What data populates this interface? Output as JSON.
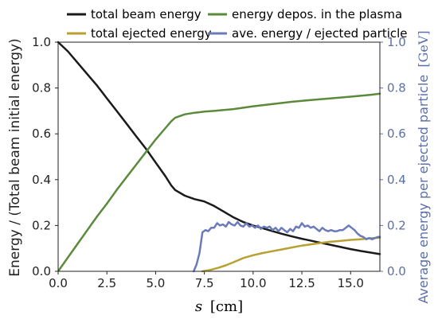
{
  "chart_data": {
    "type": "line",
    "xlabel_var": "s",
    "xlabel_unit": "[cm]",
    "ylabel": "Energy / (Total beam initial energy)",
    "ylabel_right_text": "Average energy per ejected particle",
    "ylabel_right_unit": "[GeV]",
    "xlim": [
      0,
      16.5
    ],
    "ylim": [
      0,
      1.0
    ],
    "ylim_right": [
      0,
      1.0
    ],
    "x_ticks": [
      "0.0",
      "2.5",
      "5.0",
      "7.5",
      "10.0",
      "12.5",
      "15.0"
    ],
    "y_ticks": [
      "0.0",
      "0.2",
      "0.4",
      "0.6",
      "0.8",
      "1.0"
    ],
    "y_ticks_right": [
      "0.0",
      "0.2",
      "0.4",
      "0.6",
      "0.8",
      "1.0"
    ],
    "grid": false,
    "legend_position": "top, above plot",
    "colors": {
      "beam": "#1a1a1a",
      "deposited": "#5a8a3a",
      "ejected": "#b8a032",
      "average": "#6b7ab8",
      "right_axis": "#5b6fa8"
    },
    "series": [
      {
        "key": "beam",
        "name": "total beam energy",
        "axis": "left",
        "x": [
          0,
          0.5,
          1,
          1.5,
          2,
          2.5,
          3,
          3.5,
          4,
          4.5,
          5,
          5.5,
          5.8,
          6,
          6.5,
          7,
          7.5,
          8,
          8.5,
          9,
          9.5,
          10,
          10.5,
          11,
          11.5,
          12,
          12.5,
          13,
          13.5,
          14,
          14.5,
          15,
          15.5,
          16,
          16.5
        ],
        "y": [
          1.0,
          0.96,
          0.91,
          0.86,
          0.81,
          0.755,
          0.7,
          0.645,
          0.59,
          0.535,
          0.475,
          0.415,
          0.375,
          0.355,
          0.33,
          0.315,
          0.305,
          0.285,
          0.26,
          0.235,
          0.215,
          0.2,
          0.188,
          0.175,
          0.163,
          0.152,
          0.142,
          0.133,
          0.124,
          0.115,
          0.106,
          0.097,
          0.089,
          0.082,
          0.075
        ]
      },
      {
        "key": "deposited",
        "name": "energy depos. in the plasma",
        "axis": "left",
        "x": [
          0,
          0.5,
          1,
          1.5,
          2,
          2.5,
          3,
          3.5,
          4,
          4.5,
          5,
          5.5,
          5.8,
          6,
          6.5,
          7,
          7.5,
          8,
          9,
          10,
          11,
          12,
          13,
          14,
          15,
          16,
          16.5
        ],
        "y": [
          0.0,
          0.06,
          0.12,
          0.18,
          0.24,
          0.295,
          0.355,
          0.41,
          0.465,
          0.52,
          0.575,
          0.625,
          0.655,
          0.67,
          0.685,
          0.692,
          0.697,
          0.7,
          0.708,
          0.72,
          0.73,
          0.74,
          0.748,
          0.755,
          0.762,
          0.77,
          0.775
        ]
      },
      {
        "key": "ejected",
        "name": "total ejected energy",
        "axis": "left",
        "x": [
          7.4,
          7.8,
          8.2,
          8.6,
          9,
          9.5,
          10,
          10.5,
          11,
          11.5,
          12,
          12.5,
          13,
          13.5,
          14,
          14.5,
          15,
          15.5,
          16,
          16.5
        ],
        "y": [
          0.0,
          0.006,
          0.015,
          0.026,
          0.04,
          0.058,
          0.07,
          0.08,
          0.088,
          0.096,
          0.104,
          0.112,
          0.118,
          0.124,
          0.129,
          0.133,
          0.137,
          0.14,
          0.144,
          0.147
        ]
      },
      {
        "key": "average",
        "name": "ave. energy / ejected particle",
        "axis": "right",
        "x": [
          6.95,
          7.1,
          7.25,
          7.4,
          7.55,
          7.7,
          7.85,
          8.0,
          8.15,
          8.3,
          8.45,
          8.6,
          8.75,
          8.9,
          9.05,
          9.2,
          9.35,
          9.5,
          9.65,
          9.8,
          9.95,
          10.1,
          10.25,
          10.4,
          10.55,
          10.7,
          10.85,
          11.0,
          11.15,
          11.3,
          11.45,
          11.6,
          11.75,
          11.9,
          12.05,
          12.2,
          12.35,
          12.5,
          12.65,
          12.8,
          12.95,
          13.1,
          13.25,
          13.4,
          13.55,
          13.7,
          13.85,
          14.0,
          14.15,
          14.3,
          14.45,
          14.6,
          14.75,
          14.9,
          15.05,
          15.2,
          15.35,
          15.5,
          15.65,
          15.8,
          15.95,
          16.1,
          16.25,
          16.4,
          16.5
        ],
        "y": [
          0.0,
          0.03,
          0.08,
          0.17,
          0.18,
          0.175,
          0.19,
          0.19,
          0.21,
          0.2,
          0.205,
          0.195,
          0.215,
          0.205,
          0.2,
          0.215,
          0.2,
          0.195,
          0.21,
          0.195,
          0.2,
          0.19,
          0.2,
          0.185,
          0.195,
          0.19,
          0.195,
          0.18,
          0.19,
          0.175,
          0.19,
          0.18,
          0.17,
          0.185,
          0.175,
          0.195,
          0.19,
          0.21,
          0.195,
          0.2,
          0.19,
          0.195,
          0.185,
          0.175,
          0.19,
          0.18,
          0.175,
          0.18,
          0.175,
          0.175,
          0.18,
          0.18,
          0.19,
          0.2,
          0.19,
          0.18,
          0.165,
          0.155,
          0.15,
          0.14,
          0.145,
          0.14,
          0.145,
          0.15,
          0.15
        ]
      }
    ]
  }
}
